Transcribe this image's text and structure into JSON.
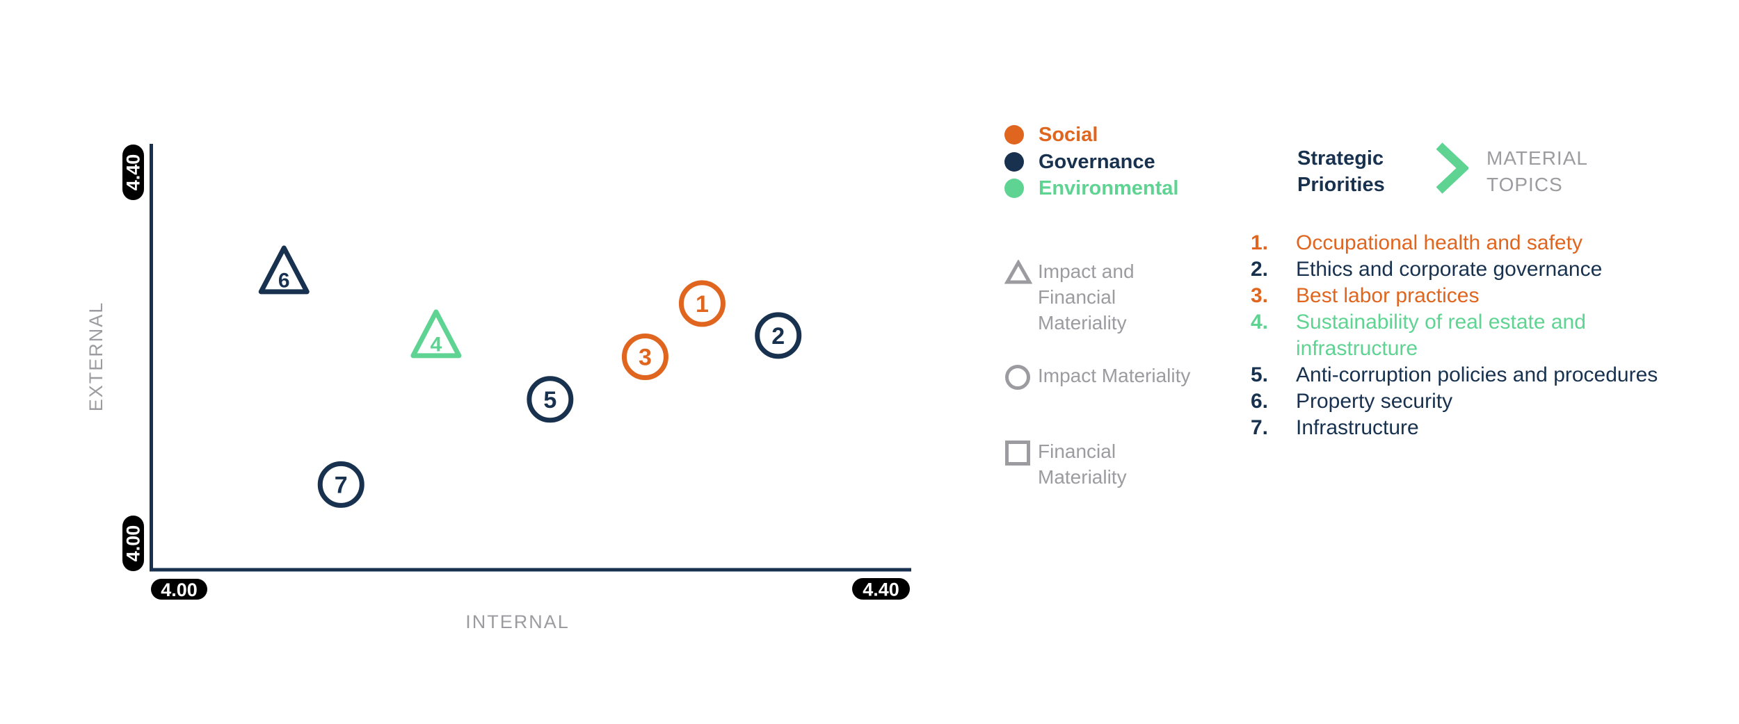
{
  "colors": {
    "orange": "#E0651F",
    "navy": "#17314F",
    "green": "#5ED392",
    "gray": "#9C9CA0",
    "pill_black": "#000000",
    "white": "#FFFFFF"
  },
  "header": {
    "strategic_priorities": "Strategic Priorities",
    "material_topics": "MATERIAL TOPICS"
  },
  "legend": {
    "categories": [
      {
        "label": "Social",
        "color": "orange"
      },
      {
        "label": "Governance",
        "color": "navy"
      },
      {
        "label": "Environmental",
        "color": "green"
      }
    ],
    "category_colors": {
      "Social": "orange",
      "Governance": "navy",
      "Environmental": "green"
    },
    "markers": [
      {
        "shape": "triangle",
        "label": "Impact and Financial Materiality"
      },
      {
        "shape": "circle",
        "label": "Impact Materiality"
      },
      {
        "shape": "square",
        "label": "Financial Materiality"
      }
    ]
  },
  "topics": [
    {
      "number": "1.",
      "label": "Occupational health and safety",
      "color": "orange"
    },
    {
      "number": "2.",
      "label": "Ethics and corporate governance",
      "color": "navy"
    },
    {
      "number": "3.",
      "label": "Best labor practices",
      "color": "orange"
    },
    {
      "number": "4.",
      "label": "Sustainability of real estate and infrastructure",
      "color": "green"
    },
    {
      "number": "5.",
      "label": "Anti-corruption policies and procedures",
      "color": "navy"
    },
    {
      "number": "6.",
      "label": "Property security",
      "color": "navy"
    },
    {
      "number": "7.",
      "label": "Infrastructure",
      "color": "navy"
    }
  ],
  "chart_data": {
    "type": "scatter",
    "title": "",
    "xlabel": "INTERNAL",
    "ylabel": "EXTERNAL",
    "xlim": [
      4.0,
      4.4
    ],
    "ylim": [
      4.0,
      4.4
    ],
    "x_tick_labels": [
      "4.00",
      "4.40"
    ],
    "y_tick_labels": [
      "4.00",
      "4.40"
    ],
    "grid": false,
    "legend_position": "right",
    "points": [
      {
        "id": 1,
        "label": "Occupational health and safety",
        "category": "Social",
        "marker": "circle",
        "materiality": "Impact Materiality",
        "x": 4.29,
        "y": 4.25
      },
      {
        "id": 2,
        "label": "Ethics and corporate governance",
        "category": "Governance",
        "marker": "circle",
        "materiality": "Impact Materiality",
        "x": 4.33,
        "y": 4.22
      },
      {
        "id": 3,
        "label": "Best labor practices",
        "category": "Social",
        "marker": "circle",
        "materiality": "Impact Materiality",
        "x": 4.26,
        "y": 4.2
      },
      {
        "id": 4,
        "label": "Sustainability of real estate and infrastructure",
        "category": "Environmental",
        "marker": "triangle",
        "materiality": "Impact and Financial Materiality",
        "x": 4.15,
        "y": 4.22
      },
      {
        "id": 5,
        "label": "Anti-corruption policies and procedures",
        "category": "Governance",
        "marker": "circle",
        "materiality": "Impact Materiality",
        "x": 4.21,
        "y": 4.16
      },
      {
        "id": 6,
        "label": "Property security",
        "category": "Governance",
        "marker": "triangle",
        "materiality": "Impact and Financial Materiality",
        "x": 4.07,
        "y": 4.28
      },
      {
        "id": 7,
        "label": "Infrastructure",
        "category": "Governance",
        "marker": "circle",
        "materiality": "Impact Materiality",
        "x": 4.1,
        "y": 4.08
      }
    ]
  }
}
